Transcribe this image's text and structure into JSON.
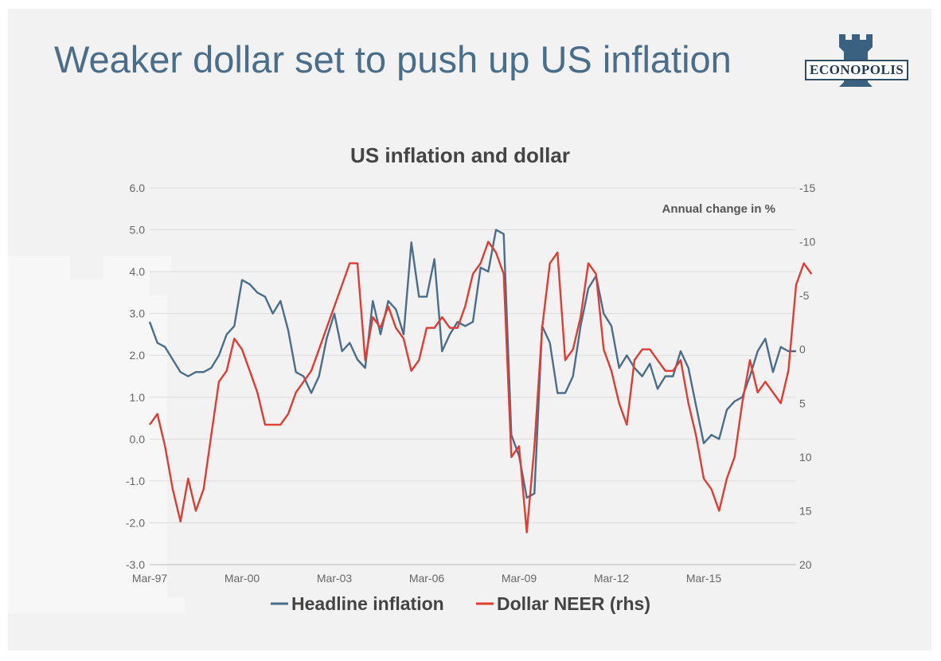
{
  "slide": {
    "title": "Weaker dollar set to push up US inflation",
    "logo_text": "ECONOPOLIS",
    "colors": {
      "title": "#4a6e8a",
      "background": "#f2f2f2",
      "logo": "#3a6280"
    }
  },
  "chart_data": {
    "type": "line",
    "title": "US inflation and dollar",
    "annotation": "Annual change in %",
    "x_tick_labels": [
      "Mar-97",
      "Mar-00",
      "Mar-03",
      "Mar-06",
      "Mar-09",
      "Mar-12",
      "Mar-15"
    ],
    "x_range": [
      "1997-03",
      "2018-03"
    ],
    "left_axis": {
      "ylim": [
        -3.0,
        6.0
      ],
      "ticks": [
        "6.0",
        "5.0",
        "4.0",
        "3.0",
        "2.0",
        "1.0",
        "0.0",
        "-1.0",
        "-2.0",
        "-3.0"
      ]
    },
    "right_axis": {
      "ylim": [
        20,
        -15
      ],
      "inverted": true,
      "ticks": [
        "-15",
        "-10",
        "-5",
        "0",
        "5",
        "10",
        "15",
        "20"
      ]
    },
    "grid": true,
    "legend_position": "bottom",
    "series": [
      {
        "name": "Headline inflation",
        "axis": "left",
        "color": "#4a6e8a",
        "points": [
          [
            "1997-03",
            2.8
          ],
          [
            "1997-06",
            2.3
          ],
          [
            "1997-09",
            2.2
          ],
          [
            "1997-12",
            1.9
          ],
          [
            "1998-03",
            1.6
          ],
          [
            "1998-06",
            1.5
          ],
          [
            "1998-09",
            1.6
          ],
          [
            "1998-12",
            1.6
          ],
          [
            "1999-03",
            1.7
          ],
          [
            "1999-06",
            2.0
          ],
          [
            "1999-09",
            2.5
          ],
          [
            "1999-12",
            2.7
          ],
          [
            "2000-03",
            3.8
          ],
          [
            "2000-06",
            3.7
          ],
          [
            "2000-09",
            3.5
          ],
          [
            "2000-12",
            3.4
          ],
          [
            "2001-03",
            3.0
          ],
          [
            "2001-06",
            3.3
          ],
          [
            "2001-09",
            2.6
          ],
          [
            "2001-12",
            1.6
          ],
          [
            "2002-03",
            1.5
          ],
          [
            "2002-06",
            1.1
          ],
          [
            "2002-09",
            1.5
          ],
          [
            "2002-12",
            2.4
          ],
          [
            "2003-03",
            3.0
          ],
          [
            "2003-06",
            2.1
          ],
          [
            "2003-09",
            2.3
          ],
          [
            "2003-12",
            1.9
          ],
          [
            "2004-03",
            1.7
          ],
          [
            "2004-06",
            3.3
          ],
          [
            "2004-09",
            2.5
          ],
          [
            "2004-12",
            3.3
          ],
          [
            "2005-03",
            3.1
          ],
          [
            "2005-06",
            2.5
          ],
          [
            "2005-09",
            4.7
          ],
          [
            "2005-12",
            3.4
          ],
          [
            "2006-03",
            3.4
          ],
          [
            "2006-06",
            4.3
          ],
          [
            "2006-09",
            2.1
          ],
          [
            "2006-12",
            2.5
          ],
          [
            "2007-03",
            2.8
          ],
          [
            "2007-06",
            2.7
          ],
          [
            "2007-09",
            2.8
          ],
          [
            "2007-12",
            4.1
          ],
          [
            "2008-03",
            4.0
          ],
          [
            "2008-06",
            5.0
          ],
          [
            "2008-09",
            4.9
          ],
          [
            "2008-12",
            0.1
          ],
          [
            "2009-03",
            -0.4
          ],
          [
            "2009-06",
            -1.4
          ],
          [
            "2009-09",
            -1.3
          ],
          [
            "2009-12",
            2.7
          ],
          [
            "2010-03",
            2.3
          ],
          [
            "2010-06",
            1.1
          ],
          [
            "2010-09",
            1.1
          ],
          [
            "2010-12",
            1.5
          ],
          [
            "2011-03",
            2.7
          ],
          [
            "2011-06",
            3.6
          ],
          [
            "2011-09",
            3.9
          ],
          [
            "2011-12",
            3.0
          ],
          [
            "2012-03",
            2.7
          ],
          [
            "2012-06",
            1.7
          ],
          [
            "2012-09",
            2.0
          ],
          [
            "2012-12",
            1.7
          ],
          [
            "2013-03",
            1.5
          ],
          [
            "2013-06",
            1.8
          ],
          [
            "2013-09",
            1.2
          ],
          [
            "2013-12",
            1.5
          ],
          [
            "2014-03",
            1.5
          ],
          [
            "2014-06",
            2.1
          ],
          [
            "2014-09",
            1.7
          ],
          [
            "2014-12",
            0.8
          ],
          [
            "2015-03",
            -0.1
          ],
          [
            "2015-06",
            0.1
          ],
          [
            "2015-09",
            0.0
          ],
          [
            "2015-12",
            0.7
          ],
          [
            "2016-03",
            0.9
          ],
          [
            "2016-06",
            1.0
          ],
          [
            "2016-09",
            1.5
          ],
          [
            "2016-12",
            2.1
          ],
          [
            "2017-03",
            2.4
          ],
          [
            "2017-06",
            1.6
          ],
          [
            "2017-09",
            2.2
          ],
          [
            "2017-12",
            2.1
          ],
          [
            "2018-03",
            2.1
          ]
        ]
      },
      {
        "name": "Dollar NEER (rhs)",
        "axis": "right",
        "color": "#e03c31",
        "points": [
          [
            "1997-03",
            7
          ],
          [
            "1997-06",
            6
          ],
          [
            "1997-09",
            9
          ],
          [
            "1997-12",
            13
          ],
          [
            "1998-03",
            16
          ],
          [
            "1998-06",
            12
          ],
          [
            "1998-09",
            15
          ],
          [
            "1998-12",
            13
          ],
          [
            "1999-03",
            8
          ],
          [
            "1999-06",
            3
          ],
          [
            "1999-09",
            2
          ],
          [
            "1999-12",
            -1
          ],
          [
            "2000-03",
            0
          ],
          [
            "2000-06",
            2
          ],
          [
            "2000-09",
            4
          ],
          [
            "2000-12",
            7
          ],
          [
            "2001-03",
            7
          ],
          [
            "2001-06",
            7
          ],
          [
            "2001-09",
            6
          ],
          [
            "2001-12",
            4
          ],
          [
            "2002-03",
            3
          ],
          [
            "2002-06",
            2
          ],
          [
            "2002-09",
            0
          ],
          [
            "2002-12",
            -2
          ],
          [
            "2003-03",
            -4
          ],
          [
            "2003-06",
            -6
          ],
          [
            "2003-09",
            -8
          ],
          [
            "2003-12",
            -8
          ],
          [
            "2004-03",
            1
          ],
          [
            "2004-06",
            -3
          ],
          [
            "2004-09",
            -2
          ],
          [
            "2004-12",
            -4
          ],
          [
            "2005-03",
            -2
          ],
          [
            "2005-06",
            -1
          ],
          [
            "2005-09",
            2
          ],
          [
            "2005-12",
            1
          ],
          [
            "2006-03",
            -2
          ],
          [
            "2006-06",
            -2
          ],
          [
            "2006-09",
            -3
          ],
          [
            "2006-12",
            -2
          ],
          [
            "2007-03",
            -2
          ],
          [
            "2007-06",
            -4
          ],
          [
            "2007-09",
            -7
          ],
          [
            "2007-12",
            -8
          ],
          [
            "2008-03",
            -10
          ],
          [
            "2008-06",
            -9
          ],
          [
            "2008-09",
            -7
          ],
          [
            "2008-12",
            10
          ],
          [
            "2009-03",
            9
          ],
          [
            "2009-06",
            17
          ],
          [
            "2009-09",
            9
          ],
          [
            "2009-12",
            -2
          ],
          [
            "2010-03",
            -8
          ],
          [
            "2010-06",
            -9
          ],
          [
            "2010-09",
            1
          ],
          [
            "2010-12",
            0
          ],
          [
            "2011-03",
            -3
          ],
          [
            "2011-06",
            -8
          ],
          [
            "2011-09",
            -7
          ],
          [
            "2011-12",
            0
          ],
          [
            "2012-03",
            2
          ],
          [
            "2012-06",
            5
          ],
          [
            "2012-09",
            7
          ],
          [
            "2012-12",
            1
          ],
          [
            "2013-03",
            0
          ],
          [
            "2013-06",
            0
          ],
          [
            "2013-09",
            1
          ],
          [
            "2013-12",
            2
          ],
          [
            "2014-03",
            2
          ],
          [
            "2014-06",
            1
          ],
          [
            "2014-09",
            5
          ],
          [
            "2014-12",
            8
          ],
          [
            "2015-03",
            12
          ],
          [
            "2015-06",
            13
          ],
          [
            "2015-09",
            15
          ],
          [
            "2015-12",
            12
          ],
          [
            "2016-03",
            10
          ],
          [
            "2016-06",
            5
          ],
          [
            "2016-09",
            1
          ],
          [
            "2016-12",
            4
          ],
          [
            "2017-03",
            3
          ],
          [
            "2017-06",
            4
          ],
          [
            "2017-09",
            5
          ],
          [
            "2017-12",
            2
          ],
          [
            "2018-03",
            -6
          ],
          [
            "2018-06",
            -8
          ],
          [
            "2018-09",
            -7
          ]
        ]
      }
    ]
  }
}
